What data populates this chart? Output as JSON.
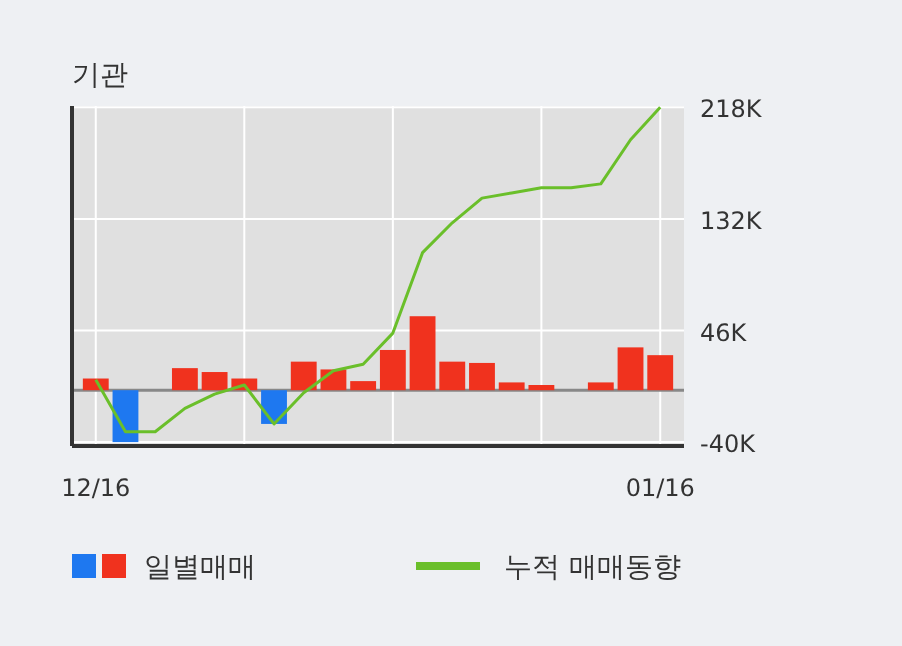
{
  "chart_data": {
    "type": "bar",
    "title": "기관",
    "categories": [
      "12/16",
      null,
      null,
      null,
      null,
      null,
      null,
      null,
      null,
      null,
      null,
      null,
      null,
      null,
      null,
      null,
      null,
      null,
      null,
      "01/16"
    ],
    "series": [
      {
        "name": "일별매매",
        "colors": [
          "#f0321e",
          "#1e78f0",
          "#f0321e",
          "#f0321e",
          "#f0321e",
          "#f0321e",
          "#1e78f0",
          "#f0321e",
          "#f0321e",
          "#f0321e",
          "#f0321e",
          "#f0321e",
          "#f0321e",
          "#f0321e",
          "#f0321e",
          "#f0321e",
          "#f0321e",
          "#f0321e",
          "#f0321e",
          "#f0321e"
        ],
        "values": [
          9,
          -40,
          0,
          17,
          14,
          9,
          -26,
          22,
          16,
          7,
          31,
          57,
          22,
          21,
          6,
          4,
          0,
          6,
          33,
          27
        ]
      },
      {
        "name": "누적 매매동향",
        "type": "line",
        "color": "#6abf2a",
        "values": [
          8,
          -32,
          -32,
          -14,
          -3,
          4,
          -26,
          -2,
          15,
          20,
          44,
          106,
          129,
          148,
          152,
          156,
          156,
          159,
          193,
          218
        ]
      }
    ],
    "ylim": [
      -43,
      219
    ],
    "yticks": [
      {
        "value": 218,
        "label": "218K"
      },
      {
        "value": 132,
        "label": "132K"
      },
      {
        "value": 46,
        "label": "46K"
      },
      {
        "value": -40,
        "label": "-40K"
      }
    ],
    "ref_lines": [
      {
        "axis": "y",
        "value": 0,
        "color": "#888888"
      }
    ],
    "grid": true,
    "legend": "bottom"
  }
}
